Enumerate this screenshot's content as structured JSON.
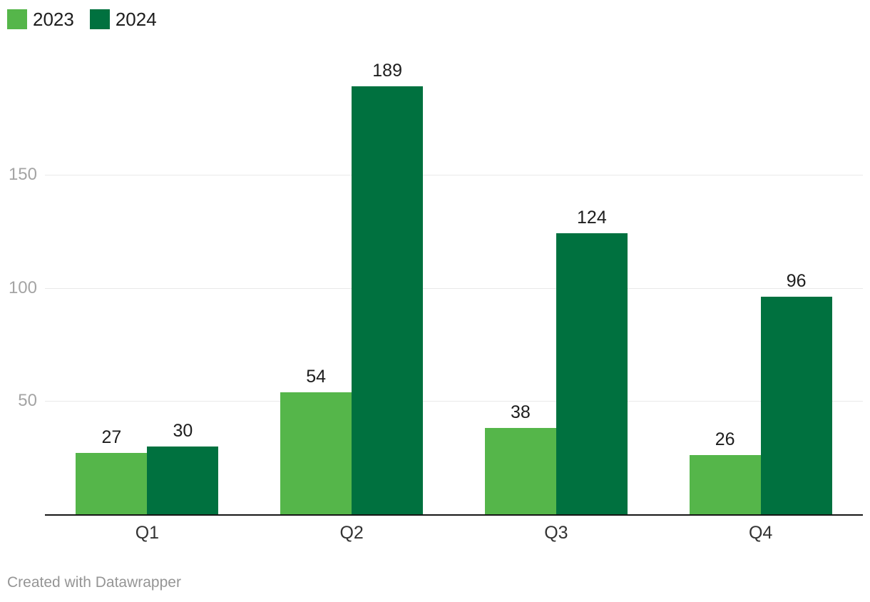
{
  "legend": {
    "items": [
      {
        "label": "2023",
        "color": "#55b64a"
      },
      {
        "label": "2024",
        "color": "#00713f"
      }
    ]
  },
  "footer": {
    "attribution": "Created with Datawrapper"
  },
  "colors": {
    "series_2023": "#55b64a",
    "series_2024": "#00713f",
    "axis_line": "#161616",
    "gridline": "#e9e9e9",
    "y_tick_text": "#a4a4a4",
    "value_label_text": "#1d1d1d",
    "x_tick_text": "#333333",
    "attribution_text": "#959595"
  },
  "chart_data": {
    "type": "bar",
    "title": "",
    "xlabel": "",
    "ylabel": "",
    "categories": [
      "Q1",
      "Q2",
      "Q3",
      "Q4"
    ],
    "series": [
      {
        "name": "2023",
        "color": "#55b64a",
        "values": [
          27,
          54,
          38,
          26
        ]
      },
      {
        "name": "2024",
        "color": "#00713f",
        "values": [
          30,
          189,
          124,
          96
        ]
      }
    ],
    "yticks": [
      50,
      100,
      150
    ],
    "ylim": [
      0,
      189
    ],
    "grid": true,
    "value_labels": true,
    "legend_position": "top-left",
    "attribution": "Created with Datawrapper"
  }
}
